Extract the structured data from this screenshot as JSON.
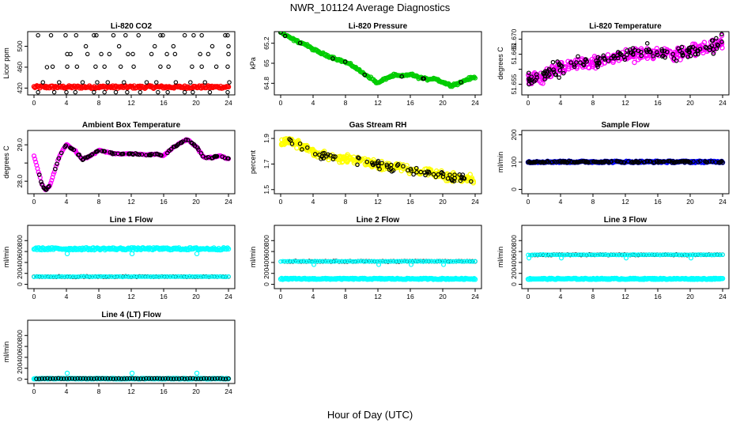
{
  "title": "NWR_101124  Average Diagnostics",
  "xlabel": "Hour of Day (UTC)",
  "colors": {
    "red": "#ff0000",
    "green": "#00cc00",
    "magenta": "#ff00ff",
    "yellow": "#ffff00",
    "cyan": "#00ffff",
    "blue": "#0000ff",
    "black": "#000000"
  },
  "chart_data": [
    {
      "type": "scatter",
      "title": "Li-820 CO2",
      "ylabel": "Licor ppm",
      "xlim": [
        0,
        24
      ],
      "ylim": [
        410,
        525
      ],
      "xticks": [
        0,
        4,
        8,
        12,
        16,
        20,
        24
      ],
      "yticks": [
        420,
        460,
        500
      ],
      "fill_series": {
        "color": "red",
        "kind": "band",
        "x": [
          0,
          24
        ],
        "y": [
          419.5,
          424.5
        ]
      },
      "points_color": "black",
      "points": [
        [
          0.5,
          521
        ],
        [
          2.1,
          521
        ],
        [
          3.9,
          521
        ],
        [
          5.2,
          521
        ],
        [
          7.4,
          521
        ],
        [
          7.7,
          521
        ],
        [
          9.8,
          521
        ],
        [
          11.3,
          521
        ],
        [
          12.9,
          521
        ],
        [
          15.6,
          521
        ],
        [
          15.9,
          521
        ],
        [
          18.6,
          521
        ],
        [
          19.7,
          521
        ],
        [
          20.7,
          521
        ],
        [
          23.6,
          521
        ],
        [
          23.9,
          521
        ],
        [
          1.6,
          460
        ],
        [
          4.1,
          485
        ],
        [
          4.5,
          485
        ],
        [
          6.6,
          485
        ],
        [
          8.3,
          485
        ],
        [
          9.3,
          485
        ],
        [
          11.6,
          485
        ],
        [
          12.2,
          485
        ],
        [
          14.5,
          485
        ],
        [
          16.4,
          485
        ],
        [
          17.4,
          485
        ],
        [
          20.5,
          485
        ],
        [
          21.5,
          485
        ],
        [
          24.0,
          485
        ],
        [
          6.4,
          500
        ],
        [
          10.5,
          500
        ],
        [
          14.9,
          500
        ],
        [
          17.2,
          500
        ],
        [
          22.0,
          500
        ],
        [
          24.0,
          500
        ],
        [
          2.3,
          461
        ],
        [
          4.1,
          461
        ],
        [
          5.3,
          461
        ],
        [
          7.6,
          461
        ],
        [
          8.7,
          461
        ],
        [
          10.7,
          461
        ],
        [
          12.3,
          461
        ],
        [
          15.6,
          461
        ],
        [
          16.6,
          461
        ],
        [
          19.5,
          461
        ],
        [
          20.7,
          461
        ],
        [
          22.5,
          461
        ],
        [
          23.9,
          461
        ],
        [
          1.1,
          431
        ],
        [
          3.1,
          431
        ],
        [
          6.0,
          431
        ],
        [
          7.8,
          431
        ],
        [
          9.1,
          431
        ],
        [
          11.1,
          431
        ],
        [
          13.9,
          431
        ],
        [
          15.1,
          431
        ],
        [
          17.5,
          431
        ],
        [
          19.3,
          431
        ],
        [
          21.1,
          431
        ],
        [
          24.1,
          431
        ],
        [
          0.5,
          412
        ],
        [
          2.5,
          412
        ],
        [
          4.0,
          412
        ],
        [
          5.1,
          412
        ],
        [
          7.4,
          412
        ],
        [
          8.7,
          412
        ],
        [
          10.1,
          412
        ],
        [
          11.5,
          412
        ],
        [
          13.1,
          412
        ],
        [
          15.3,
          412
        ],
        [
          16.5,
          412
        ],
        [
          18.6,
          412
        ],
        [
          19.6,
          412
        ],
        [
          21.7,
          412
        ],
        [
          23.9,
          412
        ]
      ]
    },
    {
      "type": "scatter",
      "title": "Li-820 Pressure",
      "ylabel": "kPa",
      "xlim": [
        0,
        24
      ],
      "ylim": [
        64.7,
        65.3
      ],
      "xticks": [
        0,
        4,
        8,
        12,
        16,
        20,
        24
      ],
      "yticks": [
        64.8,
        65.0,
        65.2
      ],
      "fill_series": {
        "color": "green",
        "kind": "line",
        "x": [
          0,
          1,
          2,
          3,
          4,
          5,
          6,
          7,
          8,
          9,
          10,
          11,
          12,
          13,
          14,
          15,
          16,
          17,
          18,
          19,
          20,
          21,
          22,
          23,
          24
        ],
        "y": [
          65.31,
          65.26,
          65.22,
          65.19,
          65.14,
          65.1,
          65.07,
          65.04,
          65.01,
          64.97,
          64.91,
          64.86,
          64.8,
          64.85,
          64.88,
          64.87,
          64.89,
          64.86,
          64.84,
          64.85,
          64.81,
          64.78,
          64.8,
          64.84,
          64.86
        ],
        "noise": 0.012
      },
      "points_color": "black",
      "points_from_line": 0.05
    },
    {
      "type": "scatter",
      "title": "Li-820 Temperature",
      "ylabel": "degrees C",
      "xlim": [
        0,
        24
      ],
      "ylim": [
        51.652,
        51.672
      ],
      "xticks": [
        0,
        4,
        8,
        12,
        16,
        20,
        24
      ],
      "yticks": [
        51.655,
        51.66,
        51.665,
        51.67
      ],
      "ytick_labels": [
        "51.655",
        "",
        "51.665",
        "51.670"
      ],
      "fill_series": {
        "color": "magenta",
        "kind": "cloud",
        "x": [
          0,
          2,
          4,
          6,
          8,
          10,
          12,
          14,
          16,
          18,
          20,
          22,
          24
        ],
        "y": [
          51.6565,
          51.6575,
          51.6605,
          51.6615,
          51.662,
          51.6635,
          51.6645,
          51.665,
          51.6655,
          51.665,
          51.6665,
          51.667,
          51.669
        ],
        "noise": 0.0022
      },
      "points_color": "black",
      "points_from_line": 0.35,
      "marker": "open"
    },
    {
      "type": "scatter",
      "title": "Ambient Box Temperature",
      "ylabel": "degrees C",
      "xlim": [
        0,
        24
      ],
      "ylim": [
        27.7,
        29.35
      ],
      "xticks": [
        0,
        4,
        8,
        12,
        16,
        20,
        24
      ],
      "yticks": [
        28.0,
        28.5,
        29.0
      ],
      "ytick_labels": [
        "28.0",
        "",
        "29.0"
      ],
      "fill_series": {
        "color": "magenta",
        "kind": "line",
        "x": [
          0,
          0.5,
          1,
          1.5,
          2,
          2.5,
          3,
          3.5,
          4,
          5,
          6,
          7,
          8,
          9,
          10,
          11,
          12,
          13,
          14,
          15,
          16,
          17,
          18,
          19,
          20,
          21,
          22,
          23,
          24
        ],
        "y": [
          28.7,
          28.3,
          27.9,
          27.75,
          27.9,
          28.25,
          28.6,
          28.85,
          29.0,
          28.85,
          28.6,
          28.7,
          28.85,
          28.8,
          28.75,
          28.75,
          28.75,
          28.75,
          28.72,
          28.75,
          28.7,
          28.9,
          29.05,
          29.15,
          28.95,
          28.65,
          28.65,
          28.7,
          28.6
        ],
        "noise": 0.018
      },
      "points_color": "black",
      "points_from_line": 0.35
    },
    {
      "type": "scatter",
      "title": "Gas Stream RH",
      "ylabel": "percent",
      "xlim": [
        0,
        24
      ],
      "ylim": [
        1.48,
        1.95
      ],
      "xticks": [
        0,
        4,
        8,
        12,
        16,
        20,
        24
      ],
      "yticks": [
        1.5,
        1.7,
        1.9
      ],
      "fill_series": {
        "color": "yellow",
        "kind": "cloud",
        "x": [
          0,
          1,
          2,
          3,
          4,
          5,
          6,
          7,
          8,
          9,
          10,
          11,
          12,
          13,
          14,
          15,
          16,
          17,
          18,
          19,
          20,
          21,
          22,
          23,
          24
        ],
        "y": [
          1.87,
          1.88,
          1.86,
          1.83,
          1.79,
          1.77,
          1.76,
          1.75,
          1.74,
          1.73,
          1.72,
          1.7,
          1.69,
          1.68,
          1.68,
          1.67,
          1.65,
          1.64,
          1.64,
          1.63,
          1.62,
          1.6,
          1.59,
          1.58,
          1.58
        ],
        "noise": 0.035
      },
      "points_color": "black",
      "points_from_line": 0.2,
      "marker": "open"
    },
    {
      "type": "scatter",
      "title": "Sample Flow",
      "ylabel": "ml/min",
      "xlim": [
        0,
        24
      ],
      "ylim": [
        -10,
        210
      ],
      "xticks": [
        0,
        4,
        8,
        12,
        16,
        20,
        24
      ],
      "yticks": [
        0,
        100,
        200
      ],
      "fill_series": {
        "color": "blue",
        "kind": "band",
        "x": [
          0,
          24
        ],
        "y": [
          98,
          104
        ]
      },
      "points_color": "black",
      "points_from_line": 0.6,
      "marker": "open"
    },
    {
      "type": "scatter",
      "title": "Line 1 Flow",
      "ylabel": "ml/min",
      "xlim": [
        0,
        24
      ],
      "ylim": [
        -50,
        1050
      ],
      "xticks": [
        0,
        4,
        8,
        12,
        16,
        20,
        24
      ],
      "yticks": [
        0,
        200,
        400,
        600,
        800
      ],
      "fill_series": {
        "color": "cyan",
        "kind": "band",
        "x": [
          0,
          24
        ],
        "y": [
          630,
          670
        ],
        "dips": [
          [
            4.1,
            560
          ],
          [
            12.1,
            560
          ],
          [
            20.1,
            560
          ]
        ]
      },
      "extra_lines": [
        {
          "color": "black",
          "y": 140,
          "x": [
            0,
            24
          ],
          "marker": "open"
        },
        {
          "color": "cyan",
          "y": 140,
          "x": [
            0,
            24
          ],
          "thin": true
        }
      ],
      "points_color": "black"
    },
    {
      "type": "scatter",
      "title": "Line 2 Flow",
      "ylabel": "ml/min",
      "xlim": [
        0,
        24
      ],
      "ylim": [
        -50,
        1050
      ],
      "xticks": [
        0,
        4,
        8,
        12,
        16,
        20,
        24
      ],
      "yticks": [
        0,
        200,
        400,
        600,
        800
      ],
      "fill_series": {
        "color": "cyan",
        "kind": "band",
        "x": [
          0,
          24
        ],
        "y": [
          90,
          110
        ]
      },
      "extra_lines": [
        {
          "color": "black",
          "y": 420,
          "x": [
            0.5,
            24
          ],
          "marker": "open"
        },
        {
          "color": "cyan",
          "y": 420,
          "x": [
            0,
            24
          ],
          "thin": true,
          "dips": [
            [
              4.1,
              360
            ],
            [
              12.1,
              360
            ],
            [
              16.1,
              360
            ],
            [
              20.1,
              360
            ]
          ]
        }
      ],
      "points_color": "black"
    },
    {
      "type": "scatter",
      "title": "Line 3 Flow",
      "ylabel": "ml/min",
      "xlim": [
        0,
        24
      ],
      "ylim": [
        -50,
        1050
      ],
      "xticks": [
        0,
        4,
        8,
        12,
        16,
        20,
        24
      ],
      "yticks": [
        0,
        200,
        400,
        600,
        800
      ],
      "fill_series": {
        "color": "cyan",
        "kind": "band",
        "x": [
          0,
          24
        ],
        "y": [
          90,
          110
        ]
      },
      "extra_lines": [
        {
          "color": "black",
          "y": 540,
          "x": [
            0.5,
            24
          ],
          "marker": "open"
        },
        {
          "color": "cyan",
          "y": 540,
          "x": [
            0,
            24
          ],
          "thin": true,
          "dips": [
            [
              0.1,
              480
            ],
            [
              4.1,
              480
            ],
            [
              12.1,
              480
            ],
            [
              20.1,
              480
            ]
          ]
        }
      ],
      "points_color": "black"
    },
    {
      "type": "scatter",
      "title": "Line 4 (LT) Flow",
      "ylabel": "ml/min",
      "xlim": [
        0,
        24
      ],
      "ylim": [
        -50,
        1050
      ],
      "xticks": [
        0,
        4,
        8,
        12,
        16,
        20,
        24
      ],
      "yticks": [
        0,
        200,
        400,
        600,
        800
      ],
      "fill_series": {
        "color": "cyan",
        "kind": "band",
        "x": [
          0,
          24
        ],
        "y": [
          5,
          15
        ],
        "dips": [
          [
            4.1,
            110
          ],
          [
            12.1,
            110
          ],
          [
            20.1,
            110
          ]
        ]
      },
      "extra_lines": [
        {
          "color": "black",
          "y": 10,
          "x": [
            0.3,
            24
          ],
          "marker": "open"
        }
      ],
      "points_color": "black"
    }
  ]
}
